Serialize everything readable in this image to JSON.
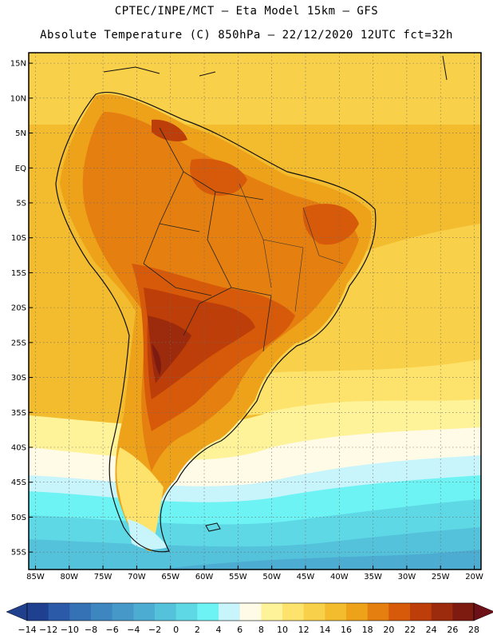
{
  "header": {
    "line1": "CPTEC/INPE/MCT –  Eta Model 15km – GFS",
    "line2": "Absolute Temperature (C) 850hPa – 22/12/2020 12UTC fct=32h"
  },
  "axes": {
    "lat_labels": [
      "15N",
      "10N",
      "5N",
      "EQ",
      "5S",
      "10S",
      "15S",
      "20S",
      "25S",
      "30S",
      "35S",
      "40S",
      "45S",
      "50S",
      "55S"
    ],
    "lon_labels": [
      "85W",
      "80W",
      "75W",
      "70W",
      "65W",
      "60W",
      "55W",
      "50W",
      "45W",
      "40W",
      "35W",
      "30W",
      "25W",
      "20W"
    ],
    "lat_range": [
      -57.5,
      16.5
    ],
    "lon_range": [
      -86,
      -19
    ]
  },
  "colorbar": {
    "labels": [
      "-14",
      "-12",
      "-10",
      "-8",
      "-6",
      "-4",
      "-2",
      "0",
      "2",
      "4",
      "6",
      "8",
      "10",
      "12",
      "14",
      "16",
      "18",
      "20",
      "22",
      "24",
      "26",
      "28"
    ],
    "colors": [
      "#1f3f8f",
      "#2b5aa8",
      "#3472b5",
      "#3d86c0",
      "#4598c8",
      "#4cacd2",
      "#55c2dc",
      "#5fd8e6",
      "#6df3f3",
      "#c8f4fb",
      "#fffbe6",
      "#fff39a",
      "#fde36b",
      "#f9d04a",
      "#f3bc2e",
      "#eda21a",
      "#e57f10",
      "#d65a0a",
      "#bd3e08",
      "#9c2a0c",
      "#7d1b10"
    ],
    "under_color": "#20408e",
    "over_color": "#6e1018"
  }
}
